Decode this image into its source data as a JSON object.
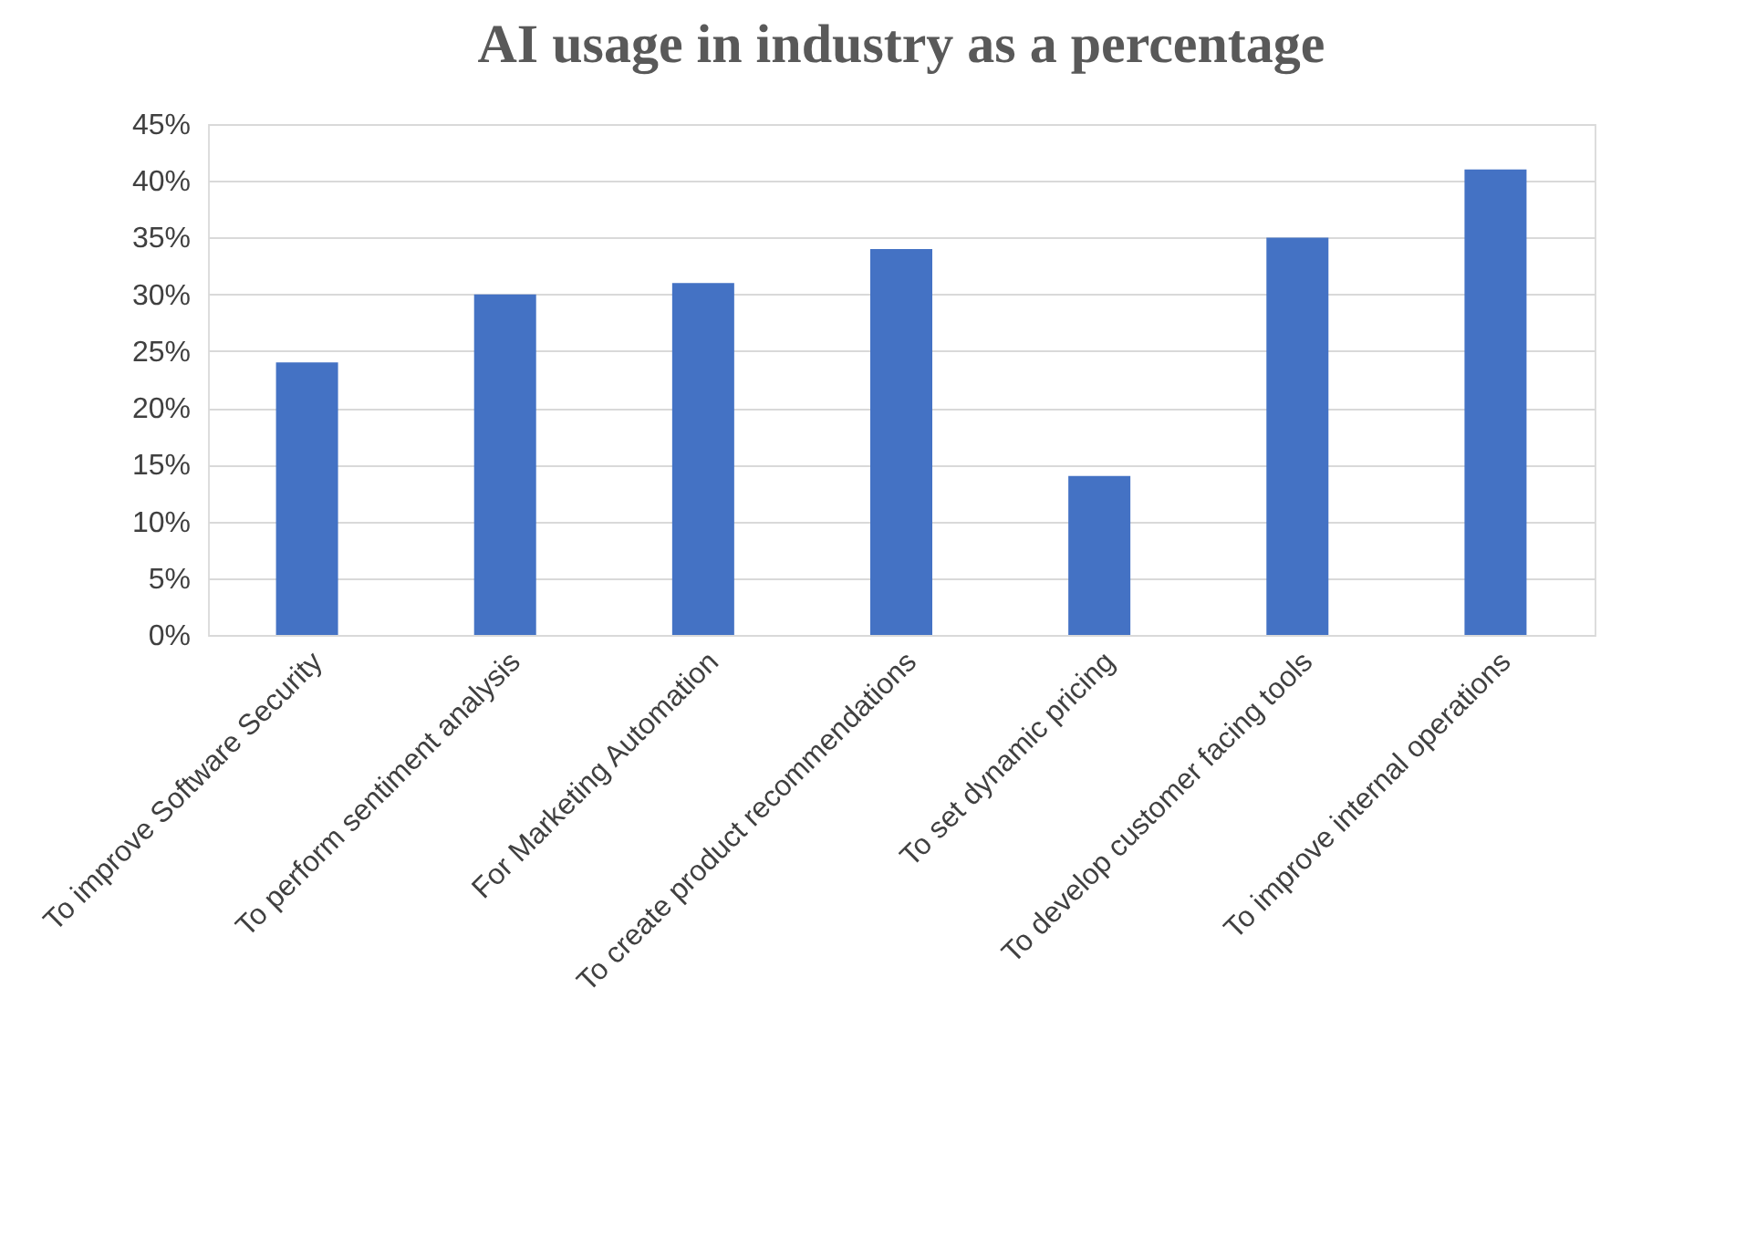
{
  "chart_data": {
    "type": "bar",
    "title": "AI usage in industry as a percentage",
    "categories": [
      "To improve Software Security",
      "To perform sentiment analysis",
      "For Marketing Automation",
      "To create product recommendations",
      "To set dynamic pricing",
      "To develop customer facing tools",
      "To improve internal operations"
    ],
    "values": [
      24,
      30,
      31,
      34,
      14,
      35,
      41
    ],
    "color": "#4472c4",
    "ylim": [
      0,
      45
    ],
    "yticks": [
      {
        "value": 0,
        "label": "0%"
      },
      {
        "value": 5,
        "label": "5%"
      },
      {
        "value": 10,
        "label": "10%"
      },
      {
        "value": 15,
        "label": "15%"
      },
      {
        "value": 20,
        "label": "20%"
      },
      {
        "value": 25,
        "label": "25%"
      },
      {
        "value": 30,
        "label": "30%"
      },
      {
        "value": 35,
        "label": "35%"
      },
      {
        "value": 40,
        "label": "40%"
      },
      {
        "value": 45,
        "label": "45%"
      }
    ],
    "grid": "y"
  }
}
